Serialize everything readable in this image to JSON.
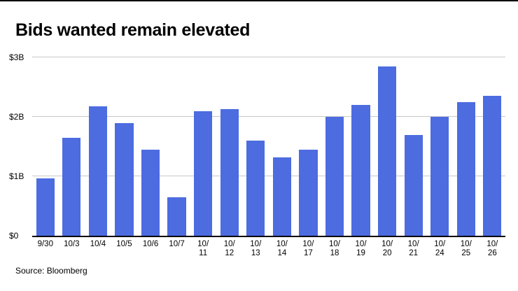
{
  "title": "Bids wanted remain elevated",
  "source": "Source: Bloomberg",
  "colors": {
    "bar": "#4c6ce0",
    "grid": "#c9c9c9",
    "axis": "#000000"
  },
  "chart_data": {
    "type": "bar",
    "title": "Bids wanted remain elevated",
    "categories": [
      "9/30",
      "10/3",
      "10/4",
      "10/5",
      "10/6",
      "10/7",
      "10/11",
      "10/12",
      "10/13",
      "10/14",
      "10/17",
      "10/18",
      "10/19",
      "10/20",
      "10/21",
      "10/24",
      "10/25",
      "10/26"
    ],
    "values": [
      0.97,
      1.65,
      2.18,
      1.9,
      1.45,
      0.65,
      2.1,
      2.13,
      1.6,
      1.32,
      1.45,
      2.0,
      2.2,
      2.85,
      1.7,
      2.0,
      2.25,
      2.35
    ],
    "xlabel": "",
    "ylabel": "",
    "ylim": [
      0,
      3
    ],
    "yticks": [
      0,
      1,
      2,
      3
    ],
    "ytick_labels": [
      "$0",
      "$1B",
      "$2B",
      "$3B"
    ],
    "grid": true,
    "legend": false,
    "source": "Source: Bloomberg"
  }
}
